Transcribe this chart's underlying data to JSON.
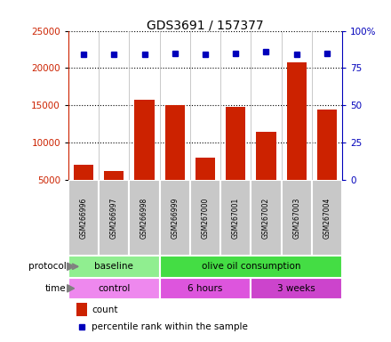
{
  "title": "GDS3691 / 157377",
  "samples": [
    "GSM266996",
    "GSM266997",
    "GSM266998",
    "GSM266999",
    "GSM267000",
    "GSM267001",
    "GSM267002",
    "GSM267003",
    "GSM267004"
  ],
  "count_values": [
    7000,
    6200,
    15700,
    15000,
    8000,
    14800,
    11500,
    20800,
    14500
  ],
  "percentile_values": [
    84,
    84,
    84,
    85,
    84,
    85,
    86,
    84,
    85
  ],
  "ylim_left": [
    5000,
    25000
  ],
  "yticks_left": [
    5000,
    10000,
    15000,
    20000,
    25000
  ],
  "ylim_right": [
    0,
    100
  ],
  "yticks_right": [
    0,
    25,
    50,
    75,
    100
  ],
  "protocol_groups": [
    {
      "label": "baseline",
      "start": 0,
      "end": 2,
      "color": "#90EE90"
    },
    {
      "label": "olive oil consumption",
      "start": 3,
      "end": 8,
      "color": "#44DD44"
    }
  ],
  "time_groups": [
    {
      "label": "control",
      "start": 0,
      "end": 2,
      "color": "#EE88EE"
    },
    {
      "label": "6 hours",
      "start": 3,
      "end": 5,
      "color": "#DD55DD"
    },
    {
      "label": "3 weeks",
      "start": 6,
      "end": 8,
      "color": "#CC44CC"
    }
  ],
  "bar_color": "#CC2200",
  "dot_color": "#0000BB",
  "left_axis_color": "#CC2200",
  "right_axis_color": "#0000BB",
  "legend_count_label": "count",
  "legend_percentile_label": "percentile rank within the sample",
  "protocol_label": "protocol",
  "time_label": "time",
  "sample_box_color": "#C8C8C8",
  "background_color": "#FFFFFF",
  "sample_divider_color": "#FFFFFF",
  "hgrid_color": "black",
  "vgrid_color": "#C0C0C0"
}
